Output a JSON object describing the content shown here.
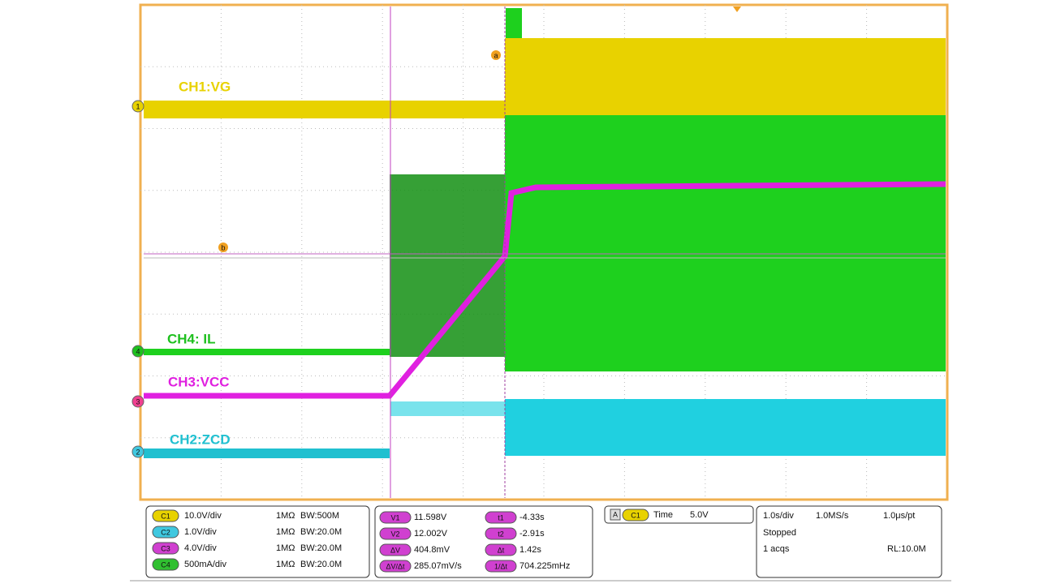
{
  "traces": [
    {
      "label": "CH1:VG",
      "marker": "1"
    },
    {
      "label": "CH4: IL",
      "marker": "4"
    },
    {
      "label": "CH3:VCC",
      "marker": "3"
    },
    {
      "label": "CH2:ZCD",
      "marker": "2"
    }
  ],
  "cursor_labels": [
    "a",
    "b"
  ],
  "channels": [
    {
      "badge": "C1",
      "scale": "10.0V/div",
      "impedance": "1MΩ",
      "bandwidth": "BW:500M"
    },
    {
      "badge": "C2",
      "scale": "1.0V/div",
      "impedance": "1MΩ",
      "bandwidth": "BW:20.0M"
    },
    {
      "badge": "C3",
      "scale": "4.0V/div",
      "impedance": "1MΩ",
      "bandwidth": "BW:20.0M"
    },
    {
      "badge": "C4",
      "scale": "500mA/div",
      "impedance": "1MΩ",
      "bandwidth": "BW:20.0M"
    }
  ],
  "cursors": [
    {
      "badge": "V1",
      "value": "11.598V",
      "badge2": "t1",
      "value2": "-4.33s"
    },
    {
      "badge": "V2",
      "value": "12.002V",
      "badge2": "t2",
      "value2": "-2.91s"
    },
    {
      "badge": "ΔV",
      "value": "404.8mV",
      "badge2": "Δt",
      "value2": "1.42s"
    },
    {
      "badge": "ΔV/Δt",
      "value": "285.07mV/s",
      "badge2": "1/Δt",
      "value2": "704.225mHz"
    }
  ],
  "trigger": {
    "badge_a": "A",
    "badge_ch": "C1",
    "label": "Time",
    "level": "5.0V"
  },
  "timebase": {
    "scale": "1.0s/div",
    "rate": "1.0MS/s",
    "resolution": "1.0μs/pt",
    "state": "Stopped",
    "acqs": "1 acqs",
    "record": "RL:10.0M"
  }
}
